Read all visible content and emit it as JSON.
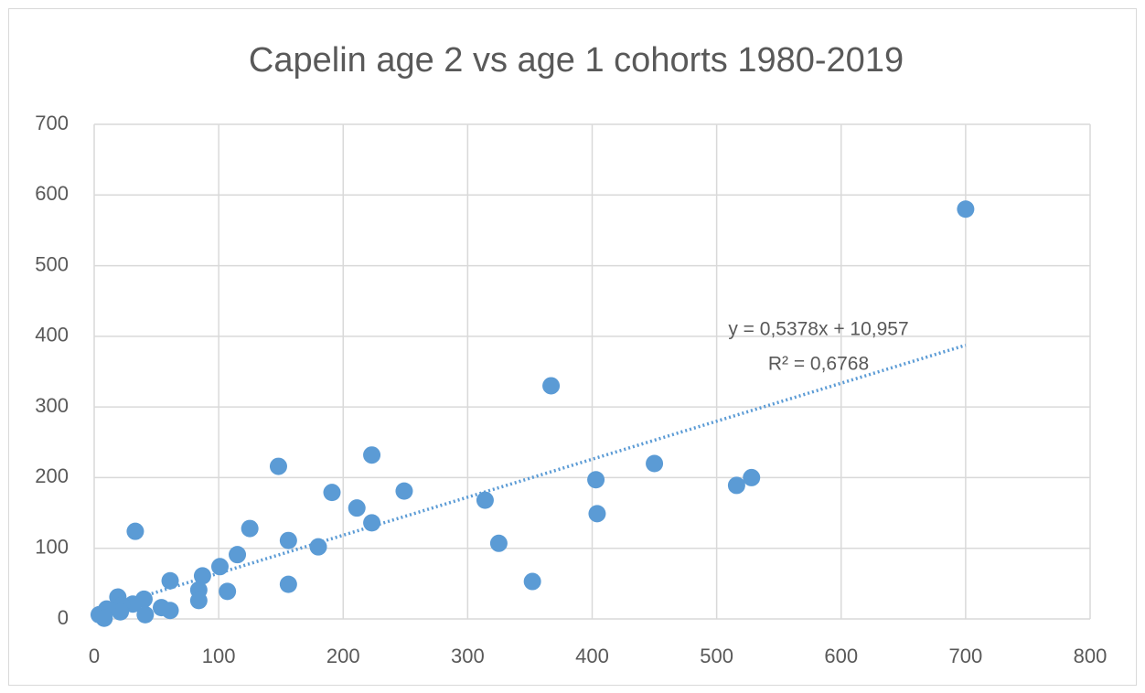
{
  "chart_data": {
    "type": "scatter",
    "title": "Capelin age 2 vs age 1 cohorts 1980-2019",
    "x": [
      700,
      367,
      223,
      148,
      450,
      403,
      528,
      516,
      404,
      314,
      249,
      191,
      211,
      223,
      325,
      352,
      180,
      156,
      156,
      125,
      115,
      101,
      107,
      87,
      84,
      84,
      61,
      61,
      33,
      54,
      40,
      41,
      31,
      19,
      22,
      21,
      10,
      7,
      4,
      8
    ],
    "values": [
      580,
      330,
      232,
      216,
      220,
      197,
      200,
      189,
      149,
      168,
      181,
      179,
      157,
      136,
      107,
      53,
      102,
      111,
      49,
      128,
      91,
      74,
      39,
      61,
      41,
      26,
      54,
      12,
      124,
      16,
      28,
      6,
      21,
      31,
      19,
      10,
      14,
      5,
      6,
      1
    ],
    "color": "#5b9bd5",
    "xlim": [
      0,
      800
    ],
    "xticks": [
      0,
      100,
      200,
      300,
      400,
      500,
      600,
      700,
      800
    ],
    "ylim": [
      0,
      700
    ],
    "yticks": [
      0,
      100,
      200,
      300,
      400,
      500,
      600,
      700
    ],
    "grid": true,
    "trendline": {
      "slope": 0.5378,
      "intercept": 10.957,
      "equation": "y = 0,5378x + 10,957",
      "r_squared": "R² = 0,6768"
    }
  }
}
